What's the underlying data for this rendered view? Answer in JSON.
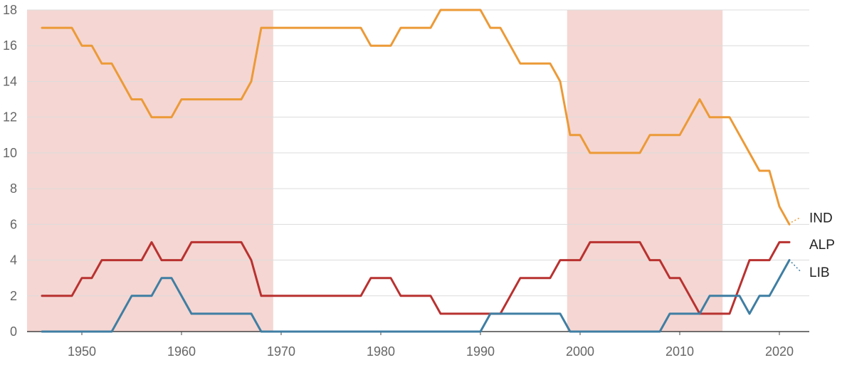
{
  "chart_data": {
    "type": "line",
    "title": "",
    "xlabel": "",
    "ylabel": "",
    "xlim": [
      1944.5,
      2023
    ],
    "ylim": [
      0,
      18
    ],
    "x_ticks": [
      1950,
      1960,
      1970,
      1980,
      1990,
      2000,
      2010,
      2020
    ],
    "y_ticks": [
      0,
      2,
      4,
      6,
      8,
      10,
      12,
      14,
      16,
      18
    ],
    "grid": true,
    "legend": "inline-right",
    "shaded_ranges": [
      {
        "from": 1944.5,
        "to": 1969.2,
        "color": "#f5d6d2"
      },
      {
        "from": 1998.7,
        "to": 2014.3,
        "color": "#f5d6d2"
      }
    ],
    "series": [
      {
        "name": "IND",
        "color": "#ec9a37",
        "points": [
          [
            1946,
            17
          ],
          [
            1949,
            17
          ],
          [
            1950,
            16
          ],
          [
            1951,
            16
          ],
          [
            1952,
            15
          ],
          [
            1953,
            15
          ],
          [
            1954,
            14
          ],
          [
            1955,
            13
          ],
          [
            1956,
            13
          ],
          [
            1957,
            12
          ],
          [
            1959,
            12
          ],
          [
            1960,
            13
          ],
          [
            1966,
            13
          ],
          [
            1967,
            14
          ],
          [
            1968,
            17
          ],
          [
            1978,
            17
          ],
          [
            1979,
            16
          ],
          [
            1981,
            16
          ],
          [
            1982,
            17
          ],
          [
            1985,
            17
          ],
          [
            1986,
            18
          ],
          [
            1990,
            18
          ],
          [
            1991,
            17
          ],
          [
            1992,
            17
          ],
          [
            1993,
            16
          ],
          [
            1994,
            15
          ],
          [
            1997,
            15
          ],
          [
            1998,
            14
          ],
          [
            1999,
            11
          ],
          [
            2000,
            11
          ],
          [
            2001,
            10
          ],
          [
            2006,
            10
          ],
          [
            2007,
            11
          ],
          [
            2010,
            11
          ],
          [
            2012,
            13
          ],
          [
            2013,
            12
          ],
          [
            2015,
            12
          ],
          [
            2016,
            11
          ],
          [
            2017,
            10
          ],
          [
            2018,
            9
          ],
          [
            2019,
            9
          ],
          [
            2020,
            7
          ],
          [
            2021,
            6
          ]
        ]
      },
      {
        "name": "ALP",
        "color": "#b83230",
        "points": [
          [
            1946,
            2
          ],
          [
            1949,
            2
          ],
          [
            1950,
            3
          ],
          [
            1951,
            3
          ],
          [
            1952,
            4
          ],
          [
            1956,
            4
          ],
          [
            1957,
            5
          ],
          [
            1958,
            4
          ],
          [
            1960,
            4
          ],
          [
            1961,
            5
          ],
          [
            1966,
            5
          ],
          [
            1967,
            4
          ],
          [
            1968,
            2
          ],
          [
            1978,
            2
          ],
          [
            1979,
            3
          ],
          [
            1981,
            3
          ],
          [
            1982,
            2
          ],
          [
            1985,
            2
          ],
          [
            1986,
            1
          ],
          [
            1992,
            1
          ],
          [
            1994,
            3
          ],
          [
            1997,
            3
          ],
          [
            1998,
            4
          ],
          [
            2000,
            4
          ],
          [
            2001,
            5
          ],
          [
            2006,
            5
          ],
          [
            2007,
            4
          ],
          [
            2008,
            4
          ],
          [
            2009,
            3
          ],
          [
            2010,
            3
          ],
          [
            2012,
            1
          ],
          [
            2015,
            1
          ],
          [
            2017,
            4
          ],
          [
            2019,
            4
          ],
          [
            2020,
            5
          ],
          [
            2021,
            5
          ]
        ]
      },
      {
        "name": "LIB",
        "color": "#3f7ea3",
        "points": [
          [
            1946,
            0
          ],
          [
            1953,
            0
          ],
          [
            1955,
            2
          ],
          [
            1957,
            2
          ],
          [
            1958,
            3
          ],
          [
            1959,
            3
          ],
          [
            1961,
            1
          ],
          [
            1967,
            1
          ],
          [
            1968,
            0
          ],
          [
            1990,
            0
          ],
          [
            1991,
            1
          ],
          [
            1998,
            1
          ],
          [
            1999,
            0
          ],
          [
            2008,
            0
          ],
          [
            2009,
            1
          ],
          [
            2012,
            1
          ],
          [
            2013,
            2
          ],
          [
            2016,
            2
          ],
          [
            2017,
            1
          ],
          [
            2018,
            2
          ],
          [
            2019,
            2
          ],
          [
            2021,
            4
          ]
        ]
      }
    ],
    "end_labels": [
      {
        "series": "IND",
        "text": "IND"
      },
      {
        "series": "ALP",
        "text": "ALP"
      },
      {
        "series": "LIB",
        "text": "LIB"
      }
    ]
  }
}
